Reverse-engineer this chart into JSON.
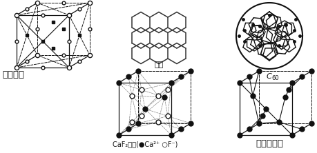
{
  "background_color": "#ffffff",
  "dark": "#111111",
  "labels": {
    "dry_ice": "干冰晶胞",
    "graphite": "石墨",
    "c60": "C",
    "c60_sub": "60",
    "caf2": "CaF₂晶胞(●Ca²⁺ ○F⁻)",
    "diamond": "金刚石晶胞"
  },
  "fig_width": 4.6,
  "fig_height": 2.22,
  "dpi": 100
}
